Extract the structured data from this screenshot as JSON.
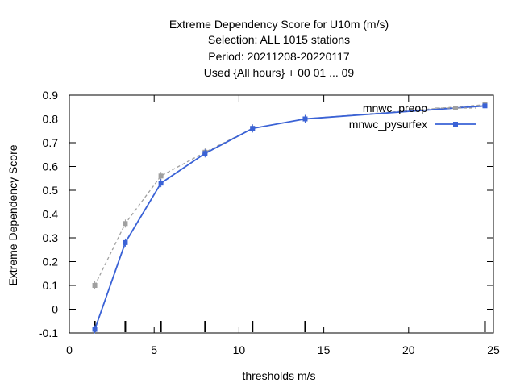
{
  "chart_data": {
    "type": "line",
    "title_lines": [
      "Extreme Dependency Score  for U10m (m/s)",
      "Selection: ALL    1015 stations",
      "Period: 20211208-20220117",
      "Used {All hours} + 00 01 ... 09"
    ],
    "xlabel": "thresholds m/s",
    "ylabel": "Extreme Dependency Score",
    "xlim": [
      0,
      25
    ],
    "ylim": [
      -0.1,
      0.9
    ],
    "xticks": [
      0,
      5,
      10,
      15,
      20,
      25
    ],
    "yticks": [
      -0.1,
      0,
      0.1,
      0.2,
      0.3,
      0.4,
      0.5,
      0.6,
      0.7,
      0.8,
      0.9
    ],
    "threshold_marks": [
      1.5,
      3.3,
      5.4,
      8.0,
      10.8,
      13.9,
      24.5
    ],
    "legend_position": "top-right",
    "grid": false,
    "series": [
      {
        "name": "mnwc_preop",
        "color": "#a0a0a0",
        "dash": true,
        "x": [
          1.5,
          3.3,
          5.4,
          8.0,
          10.8,
          13.9,
          24.5
        ],
        "y": [
          0.1,
          0.36,
          0.56,
          0.66,
          0.76,
          0.8,
          0.86
        ]
      },
      {
        "name": "mnwc_pysurfex",
        "color": "#3a62d6",
        "dash": false,
        "x": [
          1.5,
          3.3,
          5.4,
          8.0,
          10.8,
          13.9,
          24.5
        ],
        "y": [
          -0.085,
          0.28,
          0.53,
          0.655,
          0.76,
          0.8,
          0.855
        ]
      }
    ]
  }
}
